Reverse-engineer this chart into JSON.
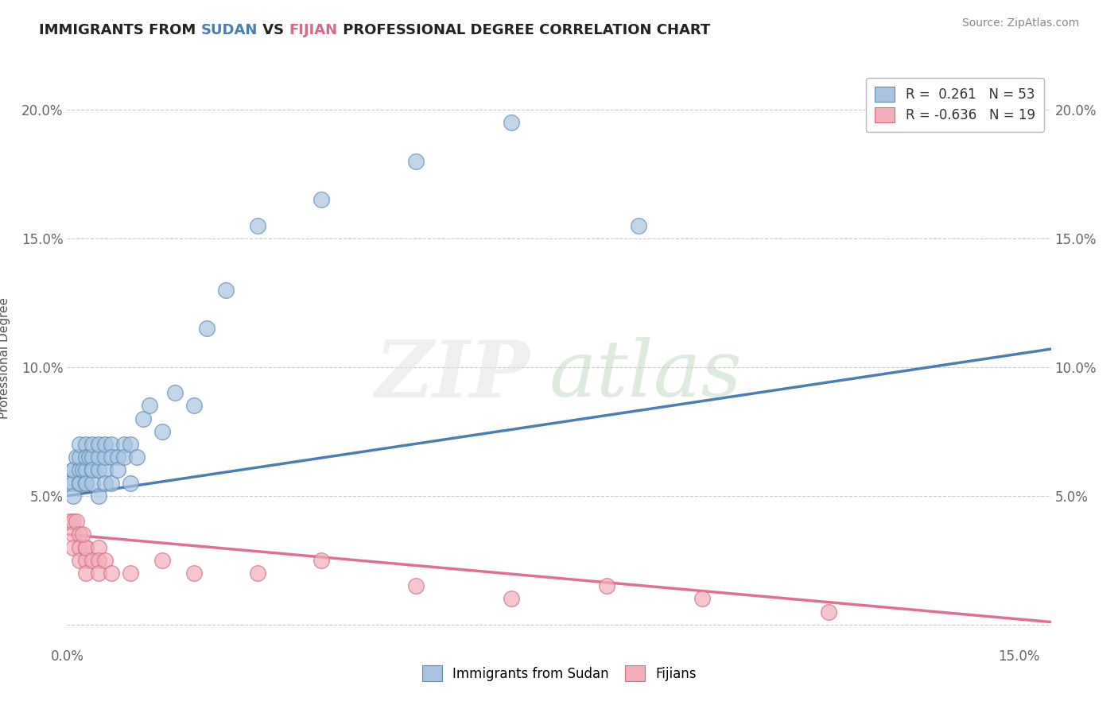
{
  "title_before": "IMMIGRANTS FROM ",
  "title_sudan": "SUDAN",
  "title_mid": " VS ",
  "title_fijian": "FIJIAN",
  "title_after": " PROFESSIONAL DEGREE CORRELATION CHART",
  "source": "Source: ZipAtlas.com",
  "ylabel": "Professional Degree",
  "xlim": [
    0.0,
    0.155
  ],
  "ylim": [
    -0.008,
    0.215
  ],
  "y_ticks": [
    0.0,
    0.05,
    0.1,
    0.15,
    0.2
  ],
  "y_tick_labels": [
    "",
    "5.0%",
    "10.0%",
    "15.0%",
    "20.0%"
  ],
  "blue_color": "#A8C4E0",
  "blue_edge_color": "#5B8DB8",
  "pink_color": "#F2AEBB",
  "pink_edge_color": "#D46B84",
  "blue_line_color": "#4A7FB5",
  "pink_line_color": "#E07090",
  "default_title_color": "#222222",
  "sudan_title_color": "#4A7FB5",
  "fijian_title_color": "#D46B84",
  "legend_label1": "R =  0.261   N = 53",
  "legend_label2": "R = -0.636   N = 19",
  "legend_num_color": "#4A7FB5",
  "bottom_label1": "Immigrants from Sudan",
  "bottom_label2": "Fijians",
  "sudan_trend_x": [
    0.0,
    0.155
  ],
  "sudan_trend_y": [
    0.05,
    0.107
  ],
  "fijian_trend_x": [
    0.0,
    0.155
  ],
  "fijian_trend_y": [
    0.035,
    0.001
  ],
  "sudan_x": [
    0.0005,
    0.001,
    0.001,
    0.001,
    0.001,
    0.0015,
    0.002,
    0.002,
    0.002,
    0.002,
    0.002,
    0.0025,
    0.003,
    0.003,
    0.003,
    0.003,
    0.003,
    0.0035,
    0.004,
    0.004,
    0.004,
    0.004,
    0.004,
    0.005,
    0.005,
    0.005,
    0.005,
    0.006,
    0.006,
    0.006,
    0.006,
    0.007,
    0.007,
    0.007,
    0.008,
    0.008,
    0.009,
    0.009,
    0.01,
    0.01,
    0.011,
    0.012,
    0.013,
    0.015,
    0.017,
    0.02,
    0.022,
    0.025,
    0.03,
    0.04,
    0.055,
    0.07,
    0.09
  ],
  "sudan_y": [
    0.055,
    0.06,
    0.055,
    0.05,
    0.06,
    0.065,
    0.055,
    0.06,
    0.065,
    0.07,
    0.055,
    0.06,
    0.055,
    0.07,
    0.06,
    0.065,
    0.055,
    0.065,
    0.06,
    0.065,
    0.07,
    0.055,
    0.06,
    0.05,
    0.06,
    0.065,
    0.07,
    0.06,
    0.065,
    0.07,
    0.055,
    0.07,
    0.065,
    0.055,
    0.065,
    0.06,
    0.07,
    0.065,
    0.07,
    0.055,
    0.065,
    0.08,
    0.085,
    0.075,
    0.09,
    0.085,
    0.115,
    0.13,
    0.155,
    0.165,
    0.18,
    0.195,
    0.155
  ],
  "fijian_x": [
    0.0005,
    0.001,
    0.001,
    0.001,
    0.0015,
    0.002,
    0.002,
    0.002,
    0.003,
    0.003,
    0.003,
    0.003,
    0.004,
    0.005,
    0.005,
    0.005,
    0.006,
    0.007,
    0.01,
    0.015,
    0.02,
    0.03,
    0.04,
    0.055,
    0.07,
    0.085,
    0.1,
    0.12,
    0.0025
  ],
  "fijian_y": [
    0.04,
    0.04,
    0.035,
    0.03,
    0.04,
    0.035,
    0.03,
    0.025,
    0.03,
    0.025,
    0.02,
    0.03,
    0.025,
    0.03,
    0.025,
    0.02,
    0.025,
    0.02,
    0.02,
    0.025,
    0.02,
    0.02,
    0.025,
    0.015,
    0.01,
    0.015,
    0.01,
    0.005,
    0.035
  ]
}
